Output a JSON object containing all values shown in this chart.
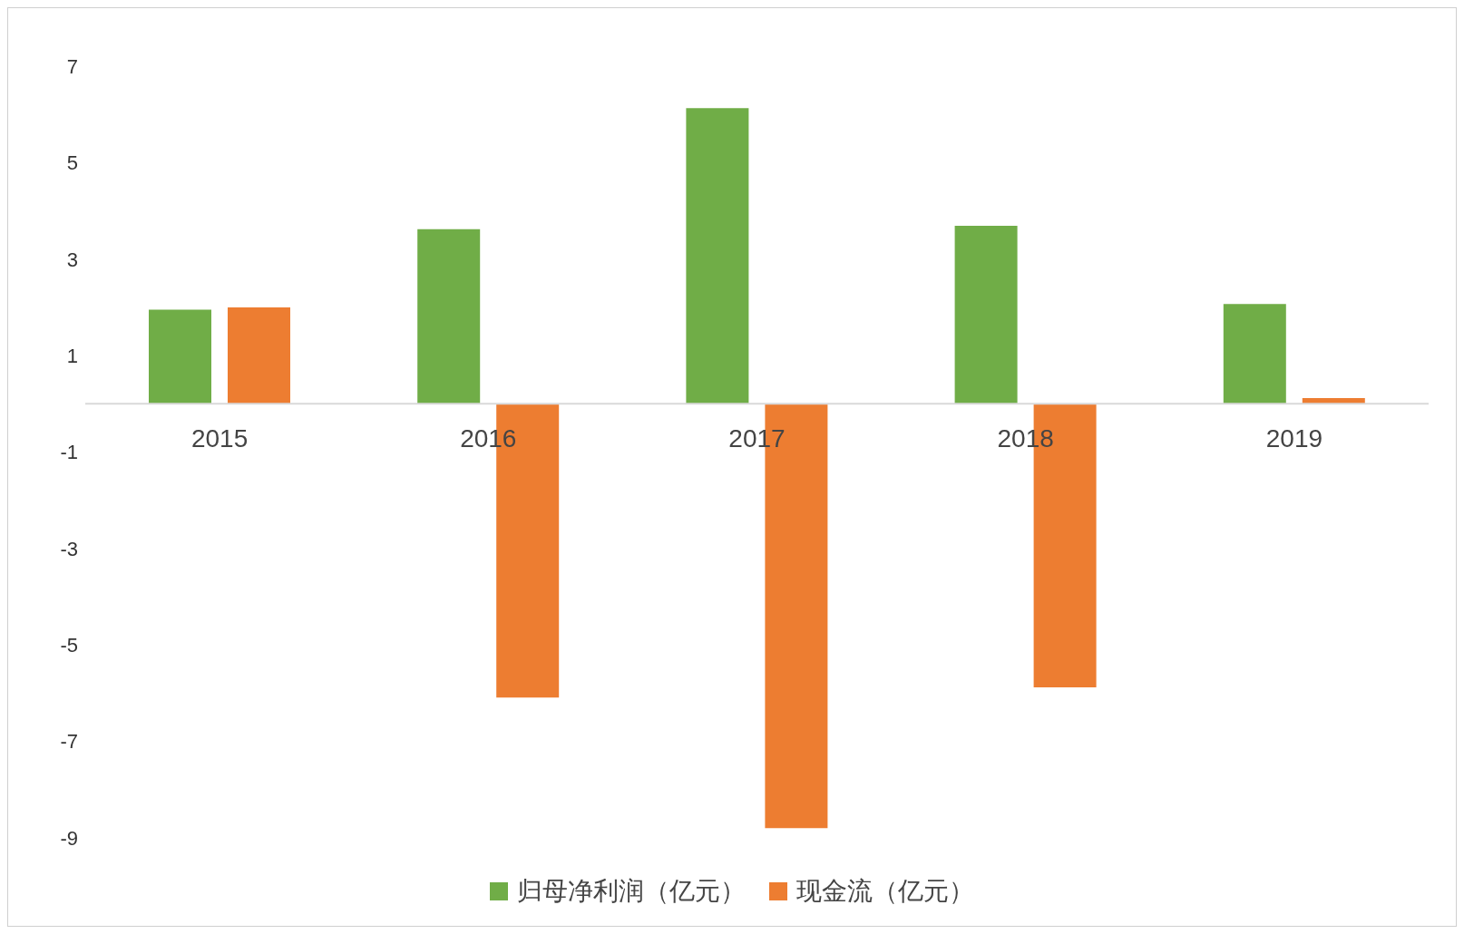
{
  "chart_data": {
    "type": "bar",
    "categories": [
      "2015",
      "2016",
      "2017",
      "2018",
      "2019"
    ],
    "series": [
      {
        "name": "归母净利润（亿元）",
        "color": "#70ad47",
        "values": [
          1.95,
          3.62,
          6.13,
          3.69,
          2.07
        ]
      },
      {
        "name": "现金流（亿元）",
        "color": "#ed7d31",
        "values": [
          2.0,
          -6.09,
          -8.8,
          -5.88,
          0.12
        ]
      }
    ],
    "ylim": [
      -9,
      7
    ],
    "yticks": [
      -9,
      -7,
      -5,
      -3,
      -1,
      1,
      3,
      5,
      7
    ],
    "grid": false,
    "legend": "bottom"
  }
}
